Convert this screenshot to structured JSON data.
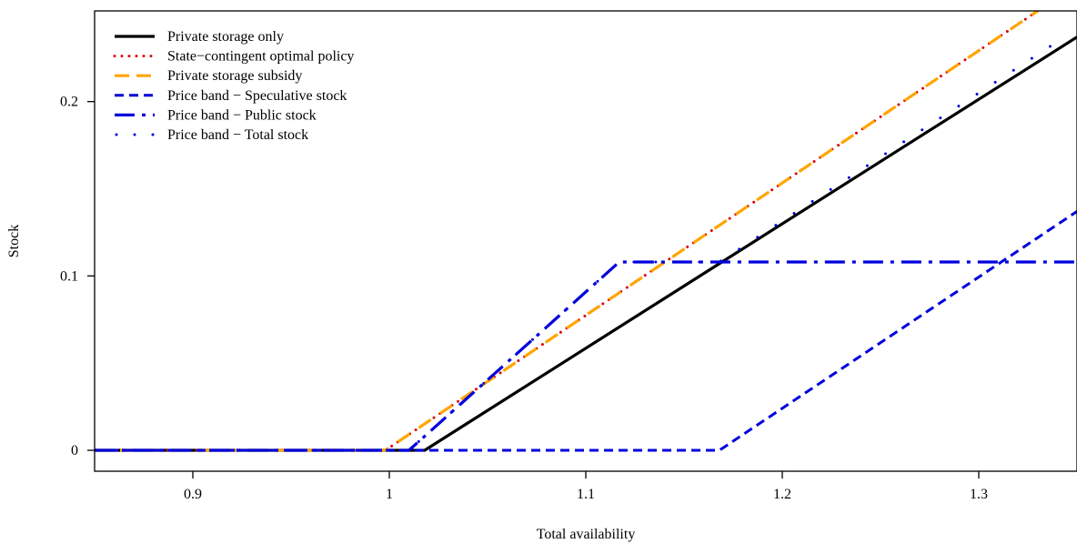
{
  "chart_data": {
    "type": "line",
    "title": "",
    "xlabel": "Total availability",
    "ylabel": "Stock",
    "xlim": [
      0.85,
      1.35
    ],
    "ylim": [
      -0.012,
      0.252
    ],
    "xticks": [
      0.9,
      1.0,
      1.1,
      1.2,
      1.3
    ],
    "xtick_labels": [
      "0.9",
      "1",
      "1.1",
      "1.2",
      "1.3"
    ],
    "yticks": [
      0,
      0.1,
      0.2
    ],
    "ytick_labels": [
      "0",
      "0.1",
      "0.2"
    ],
    "grid": false,
    "legend_position": "top-left",
    "series": [
      {
        "name": "Private storage only",
        "color": "#000000",
        "style": "solid",
        "x": [
          0.85,
          1.018,
          1.35
        ],
        "y": [
          0,
          0,
          0.237
        ]
      },
      {
        "name": "State−contingent optimal policy",
        "color": "#dd0000",
        "style": "dotted",
        "x": [
          0.85,
          0.998,
          1.33
        ],
        "y": [
          0,
          0,
          0.252
        ]
      },
      {
        "name": "Private storage subsidy",
        "color": "#ffa500",
        "style": "longdash",
        "x": [
          0.85,
          0.998,
          1.33
        ],
        "y": [
          0,
          0,
          0.252
        ]
      },
      {
        "name": "Price band − Speculative stock",
        "color": "#0000dd",
        "style": "dashed",
        "x": [
          0.85,
          1.168,
          1.35
        ],
        "y": [
          0,
          0,
          0.137
        ]
      },
      {
        "name": "Price band − Public stock",
        "color": "#0000dd",
        "style": "dashdot",
        "x": [
          0.85,
          1.01,
          1.117,
          1.35
        ],
        "y": [
          0,
          0,
          0.108,
          0.108
        ]
      },
      {
        "name": "Price band − Total stock",
        "color": "#0000dd",
        "style": "sparsedot",
        "x": [
          0.85,
          1.01,
          1.117,
          1.168,
          1.345
        ],
        "y": [
          0,
          0,
          0.108,
          0.108,
          0.238
        ]
      }
    ]
  }
}
